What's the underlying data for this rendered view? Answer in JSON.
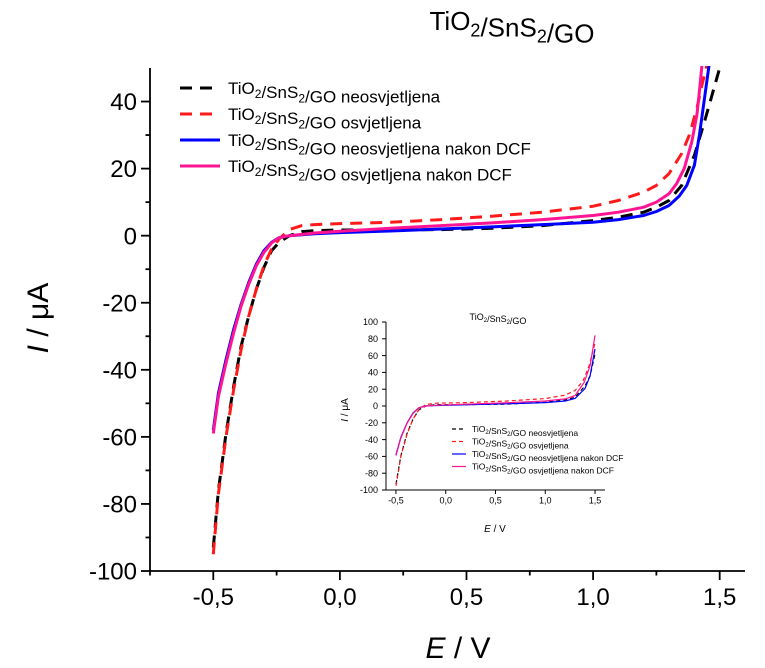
{
  "chart_data": [
    {
      "type": "line",
      "title": "TiO2/SnS2/GO",
      "xlabel": {
        "var": "E",
        "unit": " / V"
      },
      "ylabel": {
        "var": "I",
        "unit": " / μA"
      },
      "xlim": [
        -0.75,
        1.6
      ],
      "ylim": [
        -100,
        50
      ],
      "xticks": [
        "-0,5",
        "0,0",
        "0,5",
        "1,0",
        "1,5"
      ],
      "yticks": [
        "-100",
        "-80",
        "-60",
        "-40",
        "-20",
        "0",
        "20",
        "40"
      ],
      "grid": false,
      "legend_position": "top-left",
      "series": [
        {
          "name": "TiO2/SnS2/GO neosvjetljena",
          "color": "#000000",
          "dash": "dashed",
          "x": [
            -0.5,
            -0.48,
            -0.45,
            -0.42,
            -0.39,
            -0.36,
            -0.33,
            -0.3,
            -0.27,
            -0.24,
            -0.2,
            -0.15,
            -0.1,
            0.0,
            0.2,
            0.4,
            0.6,
            0.8,
            1.0,
            1.1,
            1.2,
            1.25,
            1.3,
            1.35,
            1.4,
            1.44,
            1.47,
            1.5
          ],
          "y": [
            -93,
            -76,
            -59,
            -45,
            -33,
            -24,
            -16,
            -9.5,
            -4.5,
            -2,
            0,
            1.2,
            1.5,
            1.7,
            1.7,
            1.8,
            2.2,
            3,
            4.5,
            5.5,
            7,
            8.5,
            10.5,
            15,
            24,
            34,
            42,
            50
          ]
        },
        {
          "name": "TiO2/SnS2/GO osvjetljena",
          "color": "#ff1a1a",
          "dash": "dashed",
          "x": [
            -0.5,
            -0.48,
            -0.45,
            -0.42,
            -0.39,
            -0.36,
            -0.33,
            -0.3,
            -0.27,
            -0.24,
            -0.2,
            -0.15,
            -0.1,
            0.0,
            0.2,
            0.4,
            0.6,
            0.8,
            1.0,
            1.1,
            1.2,
            1.25,
            1.3,
            1.35,
            1.38,
            1.41,
            1.43,
            1.45
          ],
          "y": [
            -95,
            -77,
            -60,
            -46,
            -34,
            -24,
            -16,
            -9,
            -4,
            -1,
            1.8,
            3,
            3.3,
            3.6,
            4,
            4.8,
            5.8,
            7,
            8.8,
            10.5,
            13,
            15,
            18.5,
            24.5,
            30,
            38,
            45,
            51
          ]
        },
        {
          "name": "TiO2/SnS2/GO neosvjetljena nakon DCF",
          "color": "#0000ff",
          "dash": "solid",
          "x": [
            -0.5,
            -0.48,
            -0.45,
            -0.42,
            -0.39,
            -0.36,
            -0.33,
            -0.3,
            -0.27,
            -0.24,
            -0.2,
            -0.1,
            0.0,
            0.2,
            0.4,
            0.6,
            0.8,
            1.0,
            1.1,
            1.2,
            1.25,
            1.3,
            1.34,
            1.37,
            1.4,
            1.42,
            1.44,
            1.46
          ],
          "y": [
            -58,
            -47,
            -37,
            -28,
            -20.5,
            -14,
            -8.5,
            -4.5,
            -2,
            -0.6,
            0,
            0.6,
            0.9,
            1.4,
            2,
            2.6,
            3.3,
            4,
            4.8,
            6,
            7.2,
            9,
            11.8,
            15,
            21,
            30,
            41,
            52
          ]
        },
        {
          "name": "TiO2/SnS2/GO osvjetljena nakon DCF",
          "color": "#ff1493",
          "dash": "solid",
          "x": [
            -0.5,
            -0.48,
            -0.45,
            -0.42,
            -0.39,
            -0.36,
            -0.33,
            -0.3,
            -0.27,
            -0.24,
            -0.2,
            -0.1,
            0.0,
            0.2,
            0.4,
            0.6,
            0.8,
            1.0,
            1.1,
            1.2,
            1.25,
            1.3,
            1.33,
            1.36,
            1.39,
            1.41,
            1.42,
            1.43
          ],
          "y": [
            -59,
            -48,
            -38,
            -29,
            -21,
            -14.5,
            -9,
            -5,
            -2.2,
            -0.6,
            0,
            0.8,
            1.3,
            2.2,
            3,
            3.8,
            4.8,
            6,
            7,
            8.5,
            10,
            12.5,
            15.5,
            20,
            28,
            36,
            43,
            51
          ]
        }
      ]
    },
    {
      "type": "line",
      "title": "TiO2/SnS2/GO",
      "xlabel": {
        "var": "E",
        "unit": " / V"
      },
      "ylabel": {
        "var": "I",
        "unit": " / μA"
      },
      "xlim": [
        -0.6,
        1.6
      ],
      "ylim": [
        -100,
        100
      ],
      "xticks": [
        "-0,5",
        "0,0",
        "0,5",
        "1,0",
        "1,5"
      ],
      "yticks": [
        "-100",
        "-80",
        "-60",
        "-40",
        "-20",
        "0",
        "20",
        "40",
        "60",
        "80",
        "100"
      ],
      "grid": false,
      "legend_position": "bottom-center",
      "legend_labels": [
        "TiO2/SnS2/GO neosvjetljena",
        "TiO2/SnS2/GO osvjetljena",
        "TiO2/SnS2/GO neosvjetljena nakon DCF",
        "TiO2/SnS2/GO osvjetljena nakon DCF"
      ],
      "series": [
        {
          "color": "#000000",
          "dash": "dashed",
          "x": [
            -0.5,
            -0.45,
            -0.39,
            -0.33,
            -0.27,
            -0.2,
            -0.1,
            0.2,
            0.6,
            1.0,
            1.2,
            1.3,
            1.4,
            1.45,
            1.5
          ],
          "y": [
            -93,
            -59,
            -33,
            -16,
            -4.5,
            0,
            1.5,
            1.7,
            2.2,
            4.5,
            7,
            10.5,
            24,
            36,
            62
          ]
        },
        {
          "color": "#ff1a1a",
          "dash": "dashed",
          "x": [
            -0.5,
            -0.45,
            -0.39,
            -0.33,
            -0.27,
            -0.2,
            -0.1,
            0.2,
            0.6,
            1.0,
            1.2,
            1.3,
            1.38,
            1.44,
            1.5
          ],
          "y": [
            -95,
            -60,
            -34,
            -16,
            -4,
            1.8,
            3.3,
            4,
            5.8,
            8.8,
            13,
            18.5,
            30,
            48,
            75
          ]
        },
        {
          "color": "#0000ff",
          "dash": "solid",
          "x": [
            -0.5,
            -0.45,
            -0.39,
            -0.33,
            -0.27,
            -0.2,
            -0.1,
            0.2,
            0.6,
            1.0,
            1.2,
            1.3,
            1.4,
            1.45,
            1.5
          ],
          "y": [
            -58,
            -37,
            -20.5,
            -8.5,
            -2,
            0,
            0.6,
            1.4,
            2.6,
            4,
            6,
            9,
            21,
            36,
            68
          ]
        },
        {
          "color": "#ff1493",
          "dash": "solid",
          "x": [
            -0.5,
            -0.45,
            -0.39,
            -0.33,
            -0.27,
            -0.2,
            -0.1,
            0.2,
            0.6,
            1.0,
            1.2,
            1.3,
            1.39,
            1.45,
            1.5
          ],
          "y": [
            -59,
            -38,
            -21,
            -9,
            -2.2,
            0,
            0.8,
            2.2,
            3.8,
            6,
            8.5,
            12.5,
            28,
            48,
            84
          ]
        }
      ]
    }
  ]
}
